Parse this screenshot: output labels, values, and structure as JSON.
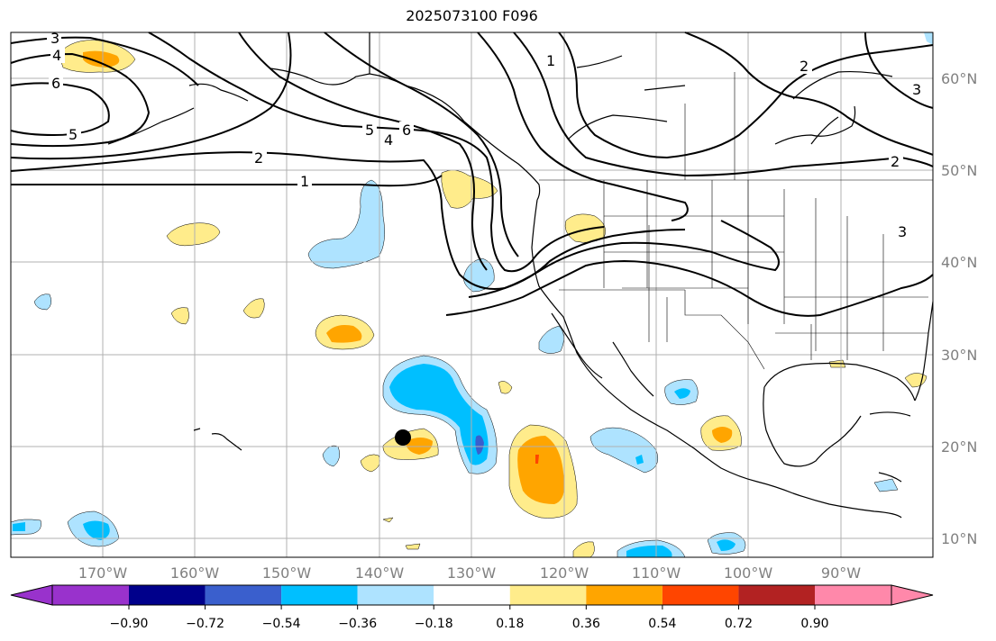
{
  "title": "2025073100 F096",
  "map": {
    "lon_ticks": [
      "170°W",
      "160°W",
      "150°W",
      "140°W",
      "130°W",
      "120°W",
      "110°W",
      "100°W",
      "90°W"
    ],
    "lat_ticks": [
      "60°N",
      "50°N",
      "40°N",
      "30°N",
      "20°N",
      "10°N"
    ],
    "contour_labels": [
      "3",
      "4",
      "6",
      "5",
      "2",
      "1",
      "5",
      "4",
      "6",
      "1",
      "2",
      "3",
      "2",
      "3"
    ],
    "storm_marker": "black-dot"
  },
  "colorbar": {
    "ticks": [
      "−0.90",
      "−0.72",
      "−0.54",
      "−0.36",
      "−0.18",
      "0.18",
      "0.36",
      "0.54",
      "0.72",
      "0.90"
    ],
    "colors": [
      "#9932cc",
      "#00008b",
      "#3a5fcd",
      "#00bfff",
      "#aee3ff",
      "#ffffff",
      "#ffec8b",
      "#ffa500",
      "#ff4500",
      "#b22222",
      "#ff88aa"
    ]
  }
}
